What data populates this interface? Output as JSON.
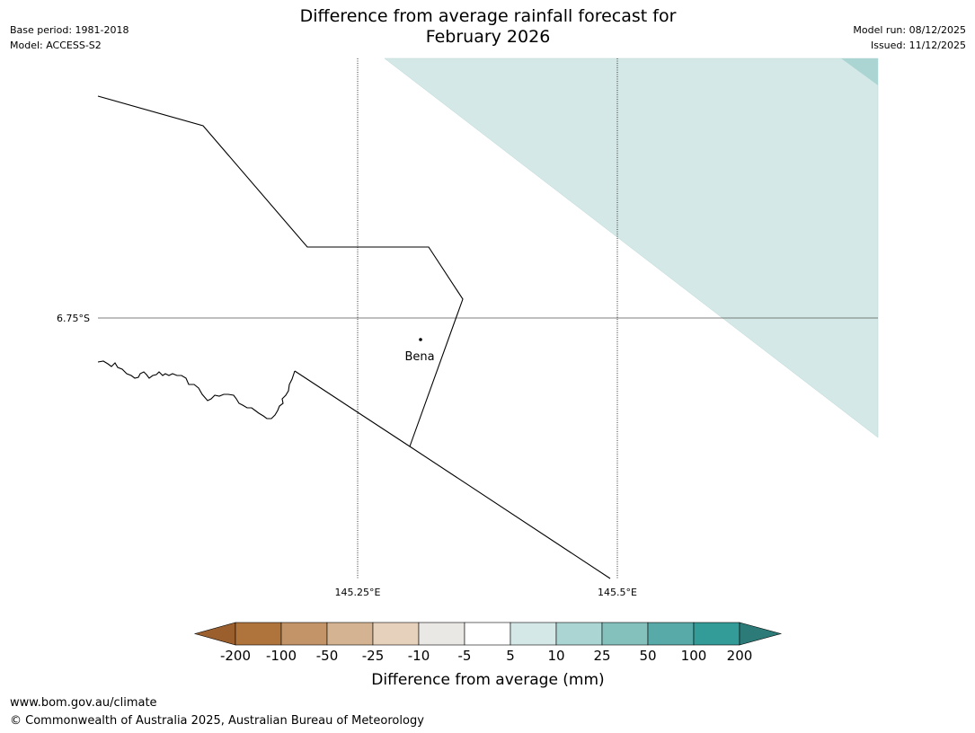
{
  "header": {
    "title_line1": "Difference from average rainfall forecast for",
    "title_line2": "February 2026",
    "base_period": "Base period: 1981-2018",
    "model": "Model: ACCESS-S2",
    "model_run": "Model run: 08/12/2025",
    "issued": "Issued: 11/12/2025"
  },
  "map": {
    "lat_labels": [
      "6.75°S"
    ],
    "lon_labels": [
      "145.25°E",
      "145.5°E"
    ],
    "places": [
      {
        "name": "Bena"
      }
    ],
    "shading_colors": {
      "light": "#d4e9e7",
      "medium": "#abd5d2"
    }
  },
  "colorbar": {
    "title": "Difference from average (mm)",
    "ticks": [
      "-200",
      "-100",
      "-50",
      "-25",
      "-10",
      "-5",
      "5",
      "10",
      "25",
      "50",
      "100",
      "200"
    ],
    "colors": [
      "#9a5f2c",
      "#ae743c",
      "#c29467",
      "#d4b392",
      "#e6d1bd",
      "#eae8e5",
      "#ffffff",
      "#d4e9e7",
      "#abd5d2",
      "#84c1bd",
      "#58aaa8",
      "#339c99",
      "#2d7b78"
    ]
  },
  "footer": {
    "url": "www.bom.gov.au/climate",
    "copyright": "© Commonwealth of Australia 2025, Australian Bureau of Meteorology"
  }
}
